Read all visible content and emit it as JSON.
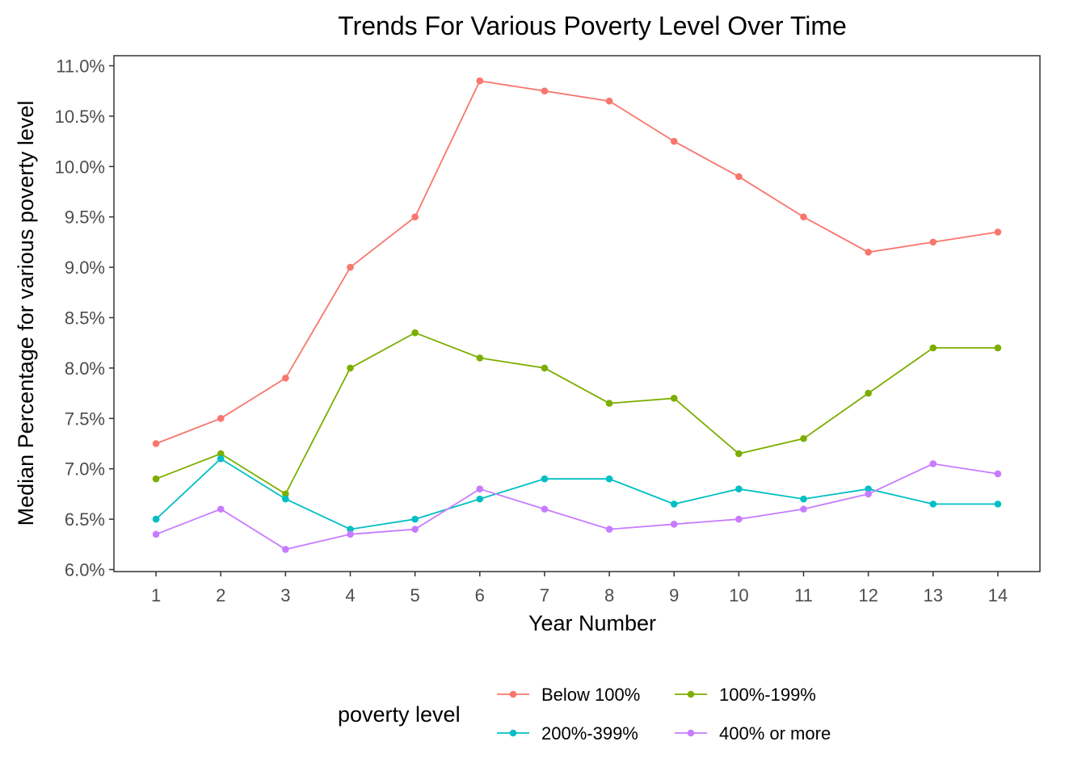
{
  "chart_data": {
    "type": "line",
    "title": "Trends For Various Poverty Level Over Time",
    "xlabel": "Year Number",
    "ylabel": "Median Percentage for various poverty level",
    "x": [
      1,
      2,
      3,
      4,
      5,
      6,
      7,
      8,
      9,
      10,
      11,
      12,
      13,
      14
    ],
    "xlim": [
      0.35,
      14.65
    ],
    "ylim": [
      5.98,
      11.1
    ],
    "yticks": [
      6.0,
      6.5,
      7.0,
      7.5,
      8.0,
      8.5,
      9.0,
      9.5,
      10.0,
      10.5,
      11.0
    ],
    "ytick_labels": [
      "6.0%",
      "6.5%",
      "7.0%",
      "7.5%",
      "8.0%",
      "8.5%",
      "9.0%",
      "9.5%",
      "10.0%",
      "10.5%",
      "11.0%"
    ],
    "xtick_labels": [
      "1",
      "2",
      "3",
      "4",
      "5",
      "6",
      "7",
      "8",
      "9",
      "10",
      "11",
      "12",
      "13",
      "14"
    ],
    "grid": false,
    "legend": {
      "title": "poverty level",
      "position": "bottom",
      "order": [
        0,
        2,
        1,
        3
      ]
    },
    "series": [
      {
        "name": "Below 100%",
        "color": "#F8766D",
        "values": [
          7.25,
          7.5,
          7.9,
          9.0,
          9.5,
          10.85,
          10.75,
          10.65,
          10.25,
          9.9,
          9.5,
          9.15,
          9.25,
          9.35
        ]
      },
      {
        "name": "100%-199%",
        "color": "#7CAE00",
        "values": [
          6.9,
          7.15,
          6.75,
          8.0,
          8.35,
          8.1,
          8.0,
          7.65,
          7.7,
          7.15,
          7.3,
          7.75,
          8.2,
          8.2
        ]
      },
      {
        "name": "200%-399%",
        "color": "#00BFC4",
        "values": [
          6.5,
          7.1,
          6.7,
          6.4,
          6.5,
          6.7,
          6.9,
          6.9,
          6.65,
          6.8,
          6.7,
          6.8,
          6.65,
          6.65
        ]
      },
      {
        "name": "400% or more",
        "color": "#C77CFF",
        "values": [
          6.35,
          6.6,
          6.2,
          6.35,
          6.4,
          6.8,
          6.6,
          6.4,
          6.45,
          6.5,
          6.6,
          6.75,
          7.05,
          6.95
        ]
      }
    ]
  }
}
